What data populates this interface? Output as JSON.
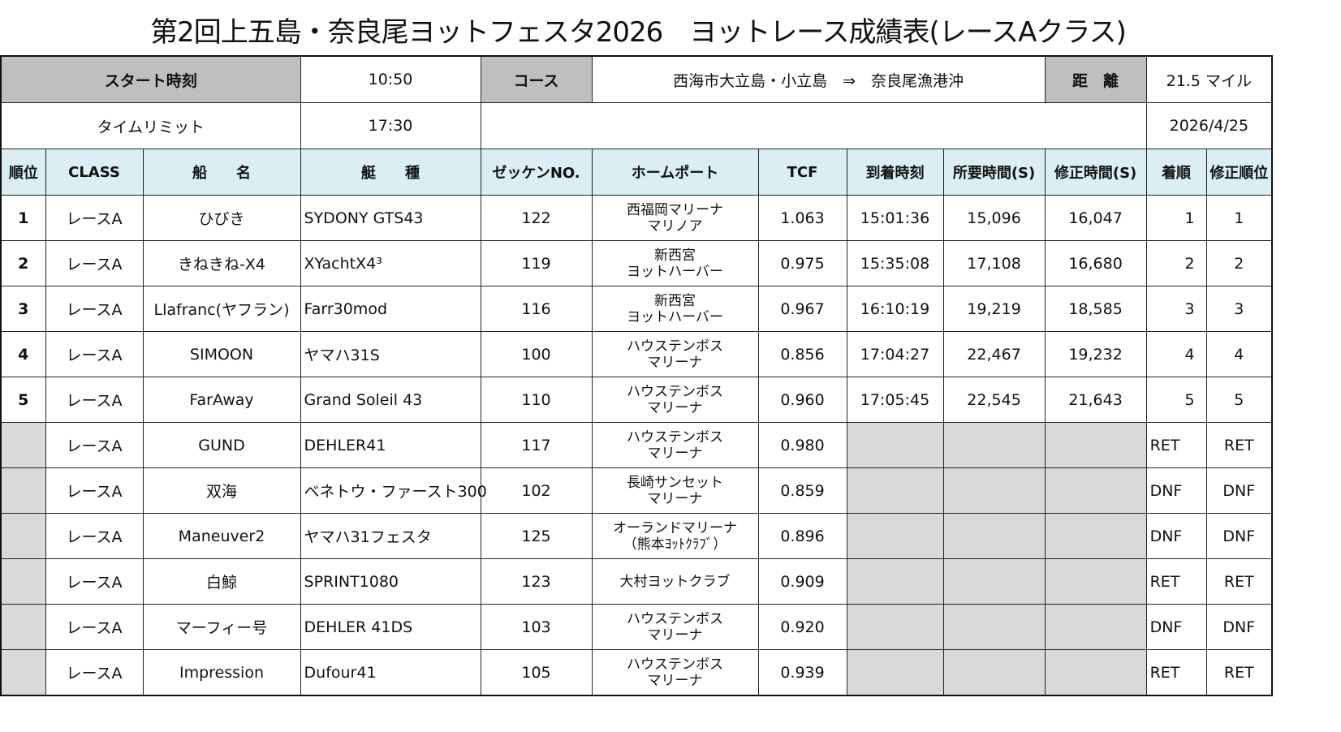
{
  "title": "第2回上五島・奈良尾ヨットフェスタ2026　ヨットレース成績表(レースAクラス)",
  "info": {
    "start_label": "スタート時刻",
    "start_time": "10:50",
    "course_label": "コース",
    "course": "西海市大立島・小立島　⇒　奈良尾漁港沖",
    "distance_label": "距　離",
    "distance": "21.5 マイル",
    "limit_label": "タイムリミット",
    "limit_time": "17:30",
    "date": "2026/4/25"
  },
  "headers": [
    "順位",
    "CLASS",
    "船　　名",
    "艇　　種",
    "ゼッケンNO.",
    "ホームポート",
    "TCF",
    "到着時刻",
    "所要時間(S)",
    "修正時間(S)",
    "着順",
    "修正順位"
  ],
  "rows": [
    {
      "rank": "1",
      "cls": "レースA",
      "name": "ひびき",
      "type": "SYDONY  GTS43",
      "no": "122",
      "port1": "西福岡マリーナ",
      "port2": "マリノア",
      "tcf": "1.063",
      "arrive": "15:01:36",
      "elapsed": "15,096",
      "corrected": "16,047",
      "finish": "1",
      "crank": "1"
    },
    {
      "rank": "2",
      "cls": "レースA",
      "name": "きねきね-X4",
      "type": "XYachtX4³",
      "no": "119",
      "port1": "新西宮",
      "port2": "ヨットハーバー",
      "tcf": "0.975",
      "arrive": "15:35:08",
      "elapsed": "17,108",
      "corrected": "16,680",
      "finish": "2",
      "crank": "2"
    },
    {
      "rank": "3",
      "cls": "レースA",
      "name": "Llafranc(ヤフラン)",
      "type": "Farr30mod",
      "no": "116",
      "port1": "新西宮",
      "port2": "ヨットハーバー",
      "tcf": "0.967",
      "arrive": "16:10:19",
      "elapsed": "19,219",
      "corrected": "18,585",
      "finish": "3",
      "crank": "3"
    },
    {
      "rank": "4",
      "cls": "レースA",
      "name": "SIMOON",
      "type": "ヤマハ31S",
      "no": "100",
      "port1": "ハウステンボス",
      "port2": "マリーナ",
      "tcf": "0.856",
      "arrive": "17:04:27",
      "elapsed": "22,467",
      "corrected": "19,232",
      "finish": "4",
      "crank": "4"
    },
    {
      "rank": "5",
      "cls": "レースA",
      "name": "FarAway",
      "type": "Grand Soleil 43",
      "no": "110",
      "port1": "ハウステンボス",
      "port2": "マリーナ",
      "tcf": "0.960",
      "arrive": "17:05:45",
      "elapsed": "22,545",
      "corrected": "21,643",
      "finish": "5",
      "crank": "5"
    },
    {
      "rank": "",
      "cls": "レースA",
      "name": "GUND",
      "type": "DEHLER41",
      "no": "117",
      "port1": "ハウステンボス",
      "port2": "マリーナ",
      "tcf": "0.980",
      "arrive": "",
      "elapsed": "",
      "corrected": "",
      "finish": "RET",
      "crank": "RET"
    },
    {
      "rank": "",
      "cls": "レースA",
      "name": "双海",
      "type": "ベネトウ・ファースト300",
      "no": "102",
      "port1": "長崎サンセット",
      "port2": "マリーナ",
      "tcf": "0.859",
      "arrive": "",
      "elapsed": "",
      "corrected": "",
      "finish": "DNF",
      "crank": "DNF"
    },
    {
      "rank": "",
      "cls": "レースA",
      "name": "Maneuver2",
      "type": "ヤマハ31フェスタ",
      "no": "125",
      "port1": "オーランドマリーナ",
      "port2": "（熊本ﾖｯﾄｸﾗﾌﾞ）",
      "tcf": "0.896",
      "arrive": "",
      "elapsed": "",
      "corrected": "",
      "finish": "DNF",
      "crank": "DNF"
    },
    {
      "rank": "",
      "cls": "レースA",
      "name": "白鯨",
      "type": "SPRINT1080",
      "no": "123",
      "port1": "大村ヨットクラブ",
      "port2": "",
      "tcf": "0.909",
      "arrive": "",
      "elapsed": "",
      "corrected": "",
      "finish": "RET",
      "crank": "RET"
    },
    {
      "rank": "",
      "cls": "レースA",
      "name": "マーフィー号",
      "type": "DEHLER  41DS",
      "no": "103",
      "port1": "ハウステンボス",
      "port2": "マリーナ",
      "tcf": "0.920",
      "arrive": "",
      "elapsed": "",
      "corrected": "",
      "finish": "DNF",
      "crank": "DNF"
    },
    {
      "rank": "",
      "cls": "レースA",
      "name": "Impression",
      "type": "Dufour41",
      "no": "105",
      "port1": "ハウステンボス",
      "port2": "マリーナ",
      "tcf": "0.939",
      "arrive": "",
      "elapsed": "",
      "corrected": "",
      "finish": "RET",
      "crank": "RET"
    }
  ]
}
